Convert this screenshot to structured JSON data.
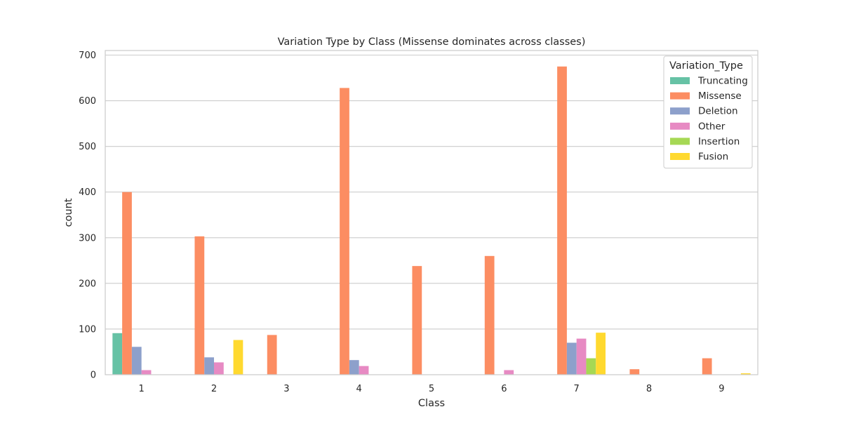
{
  "chart_data": {
    "type": "bar",
    "title": "Variation Type by Class (Missense dominates across classes)",
    "xlabel": "Class",
    "ylabel": "count",
    "ylim": [
      0,
      710
    ],
    "yticks": [
      0,
      100,
      200,
      300,
      400,
      500,
      600,
      700
    ],
    "grid": true,
    "legend_position": "top-right",
    "legend_title": "Variation_Type",
    "categories": [
      "1",
      "2",
      "3",
      "4",
      "5",
      "6",
      "7",
      "8",
      "9"
    ],
    "series": [
      {
        "name": "Truncating",
        "color": "#66c2a5",
        "values": [
          91,
          0,
          0,
          0,
          0,
          0,
          0,
          0,
          0
        ]
      },
      {
        "name": "Missense",
        "color": "#fc8d62",
        "values": [
          400,
          303,
          87,
          628,
          238,
          260,
          675,
          12,
          36
        ]
      },
      {
        "name": "Deletion",
        "color": "#8da0cb",
        "values": [
          61,
          38,
          0,
          32,
          0,
          0,
          70,
          0,
          0
        ]
      },
      {
        "name": "Other",
        "color": "#e78ac3",
        "values": [
          10,
          27,
          0,
          19,
          0,
          10,
          79,
          0,
          0
        ]
      },
      {
        "name": "Insertion",
        "color": "#a6d854",
        "values": [
          0,
          0,
          0,
          0,
          0,
          0,
          36,
          0,
          0
        ]
      },
      {
        "name": "Fusion",
        "color": "#ffd92f",
        "values": [
          0,
          76,
          0,
          0,
          0,
          0,
          92,
          0,
          3
        ]
      }
    ]
  }
}
